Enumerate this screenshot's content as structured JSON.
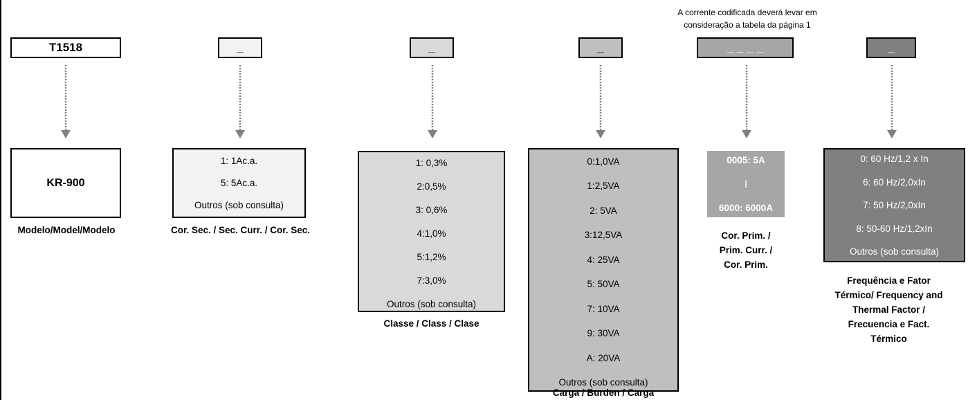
{
  "note": {
    "line1": "A corrente codificada deverá levar em",
    "line2": "consideração a tabela da página 1"
  },
  "colors": {
    "white": "#ffffff",
    "gray1": "#f2f2f2",
    "gray2": "#d9d9d9",
    "gray3": "#bfbfbf",
    "gray4": "#a6a6a6",
    "gray5": "#808080",
    "arrow": "#808080"
  },
  "columns": [
    {
      "code": "T1518",
      "options": [
        "KR-900"
      ],
      "caption": [
        "Modelo/Model/Modelo"
      ]
    },
    {
      "code": "_",
      "options": [
        "1: 1Ac.a.",
        "5: 5Ac.a.",
        "Outros (sob consulta)"
      ],
      "caption": [
        "Cor. Sec. / Sec. Curr. / Cor. Sec."
      ]
    },
    {
      "code": "_",
      "options": [
        "1: 0,3%",
        "2:0,5%",
        "3: 0,6%",
        "4:1,0%",
        "5:1,2%",
        "7:3,0%",
        "Outros (sob consulta)"
      ],
      "caption": [
        "Classe / Class / Clase"
      ]
    },
    {
      "code": "_",
      "options": [
        "0:1,0VA",
        "1:2,5VA",
        "2: 5VA",
        "3:12,5VA",
        "4: 25VA",
        "5: 50VA",
        "7: 10VA",
        "9: 30VA",
        "A: 20VA",
        "Outros (sob consulta)"
      ],
      "caption": [
        "Carga / Burden / Carga"
      ]
    },
    {
      "code": "_ _ _ _",
      "options": [
        "0005: 5A",
        "6000: 6000A"
      ],
      "caption": [
        "Cor. Prim. /",
        "Prim. Curr. /",
        "Cor. Prim."
      ]
    },
    {
      "code": "_",
      "options": [
        "0: 60 Hz/1,2 x In",
        "6: 60 Hz/2,0xIn",
        "7: 50 Hz/2,0xIn",
        "8: 50-60 Hz/1,2xIn",
        "Outros (sob consulta)"
      ],
      "caption": [
        "Frequência e Fator",
        "Térmico/ Frequency and",
        "Thermal Factor /",
        "Frecuencia e Fact.",
        "Térmico"
      ]
    }
  ]
}
